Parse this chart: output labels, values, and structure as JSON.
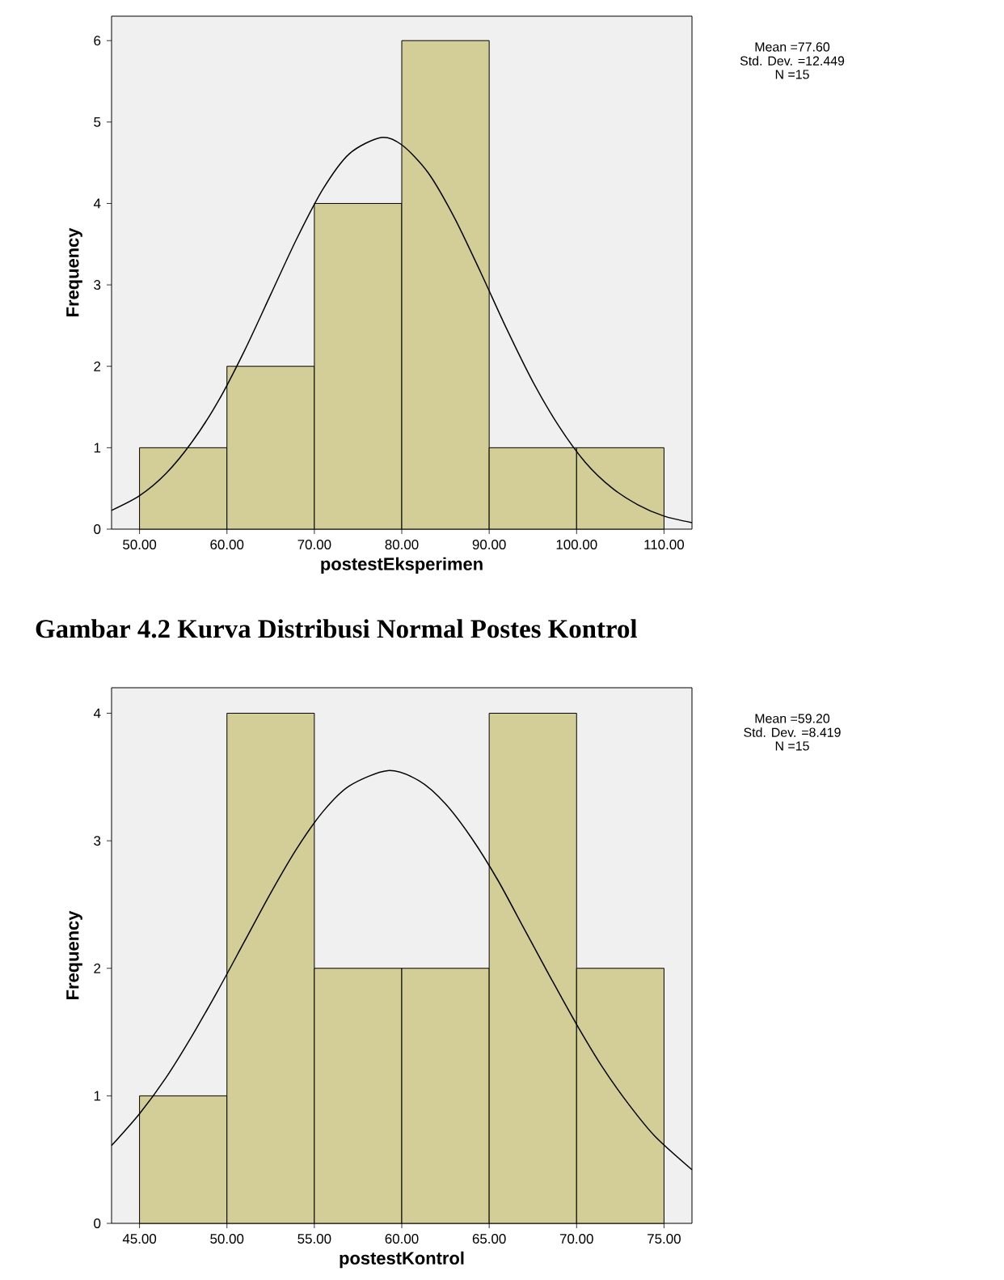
{
  "chart_data": [
    {
      "type": "histogram",
      "bins": [
        50,
        60,
        70,
        80,
        90,
        100,
        110
      ],
      "values": [
        1,
        2,
        4,
        6,
        1,
        1
      ],
      "color": "#d3ce97",
      "xlabel": "postestEksperimen",
      "ylabel": "Frequency",
      "xlim": [
        46.8,
        113.2
      ],
      "ylim": [
        0,
        6.3
      ],
      "xticks": [
        {
          "value": 50,
          "label": "50.00"
        },
        {
          "value": 60,
          "label": "60.00"
        },
        {
          "value": 70,
          "label": "70.00"
        },
        {
          "value": 80,
          "label": "80.00"
        },
        {
          "value": 90,
          "label": "90.00"
        },
        {
          "value": 100,
          "label": "100.00"
        },
        {
          "value": 110,
          "label": "110.00"
        }
      ],
      "yticks": [
        0,
        1,
        2,
        3,
        4,
        5,
        6
      ],
      "annotations": [
        "Mean =77.60",
        "Std. Dev. =12.449",
        "N =15"
      ],
      "series": [
        {
          "type": "line",
          "color": "#000000",
          "x": [
            46.8,
            50,
            53,
            56,
            59,
            62,
            65,
            68,
            71,
            74,
            77.6,
            80,
            83,
            86,
            89,
            92,
            95,
            98,
            101,
            104,
            107,
            110,
            113.2
          ],
          "values": [
            0.23,
            0.41,
            0.68,
            1.07,
            1.57,
            2.19,
            2.88,
            3.57,
            4.18,
            4.61,
            4.81,
            4.72,
            4.38,
            3.83,
            3.16,
            2.46,
            1.81,
            1.26,
            0.82,
            0.51,
            0.3,
            0.16,
            0.08
          ]
        }
      ]
    },
    {
      "type": "histogram",
      "title": "Gambar 4.2 Kurva Distribusi Normal Postes Kontrol",
      "bins": [
        45,
        50,
        55,
        60,
        65,
        70,
        75
      ],
      "values": [
        1,
        4,
        2,
        2,
        4,
        2
      ],
      "color": "#d3ce97",
      "xlabel": "postestKontrol",
      "ylabel": "Frequency",
      "xlim": [
        43.4,
        76.6
      ],
      "ylim": [
        0,
        4.2
      ],
      "xticks": [
        {
          "value": 45,
          "label": "45.00"
        },
        {
          "value": 50,
          "label": "50.00"
        },
        {
          "value": 55,
          "label": "55.00"
        },
        {
          "value": 60,
          "label": "60.00"
        },
        {
          "value": 65,
          "label": "65.00"
        },
        {
          "value": 70,
          "label": "70.00"
        },
        {
          "value": 75,
          "label": "75.00"
        }
      ],
      "yticks": [
        0,
        1,
        2,
        3,
        4
      ],
      "annotations": [
        "Mean =59.20",
        "Std. Dev. =8.419",
        "N =15"
      ],
      "series": [
        {
          "type": "line",
          "color": "#000000",
          "x": [
            43.4,
            45,
            46.5,
            48,
            49.5,
            51,
            52.5,
            54,
            55.5,
            57,
            59.2,
            61,
            62.5,
            64,
            65.5,
            67,
            68.5,
            70,
            71.5,
            73,
            74.5,
            76.6
          ],
          "values": [
            0.61,
            0.86,
            1.14,
            1.47,
            1.83,
            2.21,
            2.59,
            2.94,
            3.23,
            3.43,
            3.55,
            3.47,
            3.29,
            3.02,
            2.69,
            2.31,
            1.93,
            1.56,
            1.22,
            0.93,
            0.68,
            0.42
          ]
        }
      ]
    }
  ]
}
